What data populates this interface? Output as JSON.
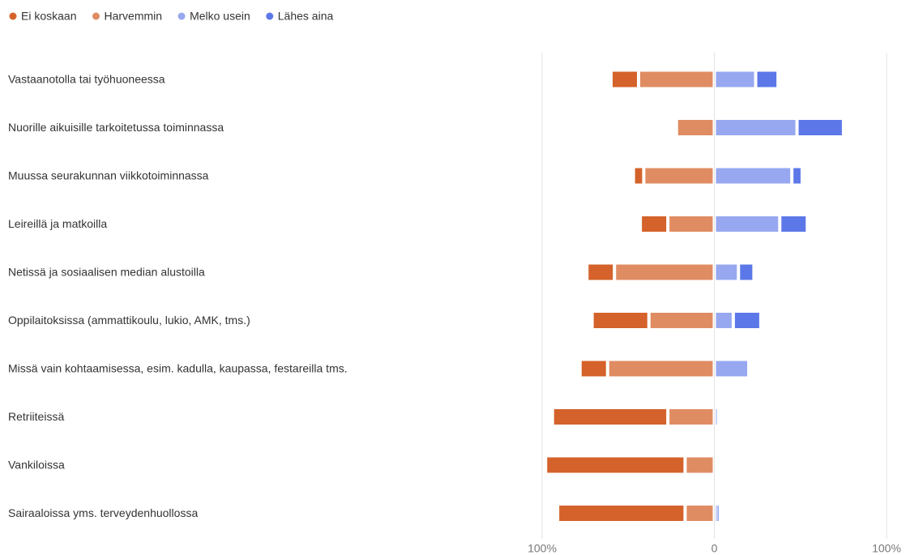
{
  "chart_data": {
    "type": "diverging-bar",
    "categories": [
      "Vastaanotolla tai työhuoneessa",
      "Nuorille aikuisille tarkoitetussa toiminnassa",
      "Muussa seurakunnan viikkotoiminnassa",
      "Leireillä ja matkoilla",
      "Netissä ja sosiaalisen median alustoilla",
      "Oppilaitoksissa (ammattikoulu, lukio, AMK, tms.)",
      "Missä vain kohtaamisessa, esim. kadulla, kaupassa, festareilla tms.",
      "Retriiteissä",
      "Vankiloissa",
      "Sairaaloissa yms. terveydenhuollossa"
    ],
    "series": [
      {
        "name": "Ei koskaan",
        "color": "#d4622a",
        "side": "negative",
        "values": [
          16,
          0,
          6,
          16,
          16,
          33,
          16,
          67,
          81,
          74
        ]
      },
      {
        "name": "Harvemmin",
        "color": "#e08c63",
        "side": "negative",
        "values": [
          44,
          22,
          41,
          27,
          58,
          38,
          62,
          27,
          17,
          17
        ]
      },
      {
        "name": "Melko usein",
        "color": "#97a8f0",
        "side": "positive",
        "values": [
          24,
          48,
          45,
          38,
          14,
          11,
          20,
          1,
          0,
          1
        ]
      },
      {
        "name": "Lähes aina",
        "color": "#5c78e8",
        "side": "positive",
        "values": [
          13,
          27,
          6,
          16,
          9,
          16,
          0,
          0,
          0,
          2
        ]
      }
    ],
    "xlim": [
      -100,
      100
    ],
    "xticks": [
      {
        "value": -100,
        "label": "100%"
      },
      0,
      {
        "value": 100,
        "label": "100%"
      }
    ],
    "grid": true,
    "legend": "top-left"
  }
}
